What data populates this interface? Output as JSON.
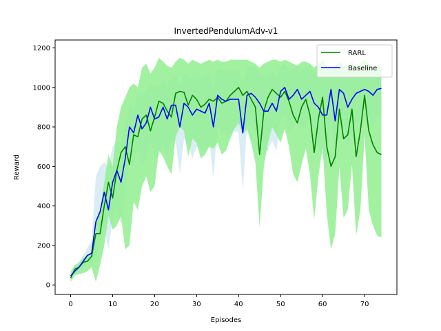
{
  "chart_data": {
    "type": "line",
    "title": "InvertedPendulumAdv-v1",
    "xlabel": "Episodes",
    "ylabel": "Reward",
    "xlim": [
      -3.7,
      77.7
    ],
    "ylim": [
      -48,
      1240
    ],
    "xticks": [
      0,
      10,
      20,
      30,
      40,
      50,
      60,
      70
    ],
    "yticks": [
      0,
      200,
      400,
      600,
      800,
      1000,
      1200
    ],
    "grid": false,
    "legend_position": "top-right",
    "x": [
      0,
      1,
      2,
      3,
      4,
      5,
      6,
      7,
      8,
      9,
      10,
      11,
      12,
      13,
      14,
      15,
      16,
      17,
      18,
      19,
      20,
      21,
      22,
      23,
      24,
      25,
      26,
      27,
      28,
      29,
      30,
      31,
      32,
      33,
      34,
      35,
      36,
      37,
      38,
      39,
      40,
      41,
      42,
      43,
      44,
      45,
      46,
      47,
      48,
      49,
      50,
      51,
      52,
      53,
      54,
      55,
      56,
      57,
      58,
      59,
      60,
      61,
      62,
      63,
      64,
      65,
      66,
      67,
      68,
      69,
      70,
      71,
      72,
      73,
      74
    ],
    "series": [
      {
        "name": "RARL",
        "color": "#008000",
        "band_color": "#90ee90",
        "values": [
          35,
          80,
          90,
          115,
          120,
          145,
          260,
          260,
          400,
          520,
          440,
          580,
          670,
          700,
          610,
          760,
          750,
          840,
          860,
          780,
          850,
          930,
          920,
          880,
          850,
          970,
          980,
          975,
          910,
          960,
          940,
          900,
          915,
          940,
          930,
          950,
          920,
          930,
          960,
          980,
          1000,
          960,
          980,
          940,
          900,
          660,
          880,
          950,
          990,
          970,
          950,
          980,
          930,
          860,
          820,
          900,
          940,
          860,
          670,
          840,
          950,
          700,
          600,
          650,
          890,
          740,
          760,
          890,
          650,
          780,
          960,
          780,
          710,
          670,
          660
        ],
        "upper": [
          65,
          100,
          110,
          140,
          150,
          170,
          320,
          380,
          520,
          660,
          600,
          800,
          900,
          950,
          1000,
          1020,
          1000,
          1100,
          1120,
          1070,
          1100,
          1150,
          1130,
          1110,
          1100,
          1130,
          1150,
          1140,
          1120,
          1140,
          1130,
          1120,
          1130,
          1140,
          1130,
          1140,
          1130,
          1130,
          1140,
          1140,
          1140,
          1140,
          1140,
          1130,
          1120,
          1100,
          1120,
          1130,
          1140,
          1140,
          1130,
          1140,
          1130,
          1120,
          1110,
          1130,
          1130,
          1120,
          1100,
          1120,
          1140,
          1110,
          1100,
          1110,
          1130,
          1110,
          1110,
          1130,
          1100,
          1120,
          1140,
          1120,
          1110,
          1100,
          1100
        ],
        "lower": [
          15,
          50,
          55,
          60,
          70,
          90,
          15,
          100,
          200,
          350,
          280,
          300,
          350,
          180,
          200,
          420,
          380,
          500,
          550,
          470,
          500,
          680,
          650,
          600,
          560,
          750,
          800,
          780,
          650,
          740,
          720,
          640,
          660,
          700,
          690,
          720,
          660,
          680,
          740,
          790,
          820,
          760,
          790,
          720,
          620,
          290,
          600,
          720,
          800,
          760,
          720,
          790,
          700,
          560,
          520,
          610,
          690,
          560,
          330,
          550,
          700,
          360,
          180,
          260,
          600,
          340,
          380,
          610,
          250,
          380,
          760,
          380,
          300,
          250,
          240
        ]
      },
      {
        "name": "Baseline",
        "color": "#0000ff",
        "band_color": "#add8e6",
        "values": [
          45,
          70,
          90,
          120,
          150,
          160,
          320,
          370,
          470,
          380,
          520,
          580,
          520,
          640,
          800,
          770,
          860,
          790,
          820,
          900,
          840,
          850,
          900,
          840,
          910,
          910,
          800,
          920,
          900,
          860,
          890,
          880,
          870,
          920,
          800,
          960,
          940,
          930,
          940,
          940,
          940,
          770,
          960,
          970,
          950,
          920,
          880,
          880,
          920,
          880,
          980,
          1000,
          940,
          960,
          990,
          940,
          960,
          980,
          920,
          900,
          860,
          860,
          990,
          830,
          990,
          970,
          900,
          940,
          970,
          980,
          990,
          980,
          960,
          990,
          995
        ],
        "upper": [
          70,
          100,
          120,
          150,
          190,
          220,
          550,
          600,
          620,
          600,
          700,
          730,
          720,
          800,
          920,
          900,
          980,
          950,
          980,
          1020,
          1000,
          1010,
          1040,
          1000,
          1060,
          1060,
          1000,
          1070,
          1060,
          1040,
          1060,
          1050,
          1050,
          1080,
          1000,
          1100,
          1090,
          1080,
          1090,
          1090,
          1090,
          1020,
          1100,
          1110,
          1100,
          1080,
          1060,
          1060,
          1080,
          1060,
          1110,
          1120,
          1090,
          1100,
          1110,
          1090,
          1100,
          1110,
          1080,
          1070,
          1050,
          1050,
          1110,
          1040,
          1110,
          1100,
          1070,
          1090,
          1100,
          1110,
          1110,
          1110,
          1100,
          1110,
          1110
        ],
        "lower": [
          30,
          50,
          60,
          90,
          110,
          100,
          150,
          200,
          290,
          180,
          330,
          400,
          300,
          440,
          630,
          600,
          700,
          600,
          640,
          740,
          640,
          650,
          720,
          640,
          730,
          730,
          560,
          740,
          720,
          640,
          700,
          690,
          670,
          730,
          540,
          810,
          770,
          760,
          770,
          780,
          770,
          480,
          800,
          820,
          780,
          740,
          680,
          680,
          730,
          680,
          840,
          870,
          770,
          800,
          850,
          780,
          800,
          840,
          730,
          700,
          640,
          640,
          850,
          600,
          850,
          820,
          700,
          770,
          820,
          840,
          850,
          840,
          800,
          850,
          860
        ]
      }
    ]
  }
}
